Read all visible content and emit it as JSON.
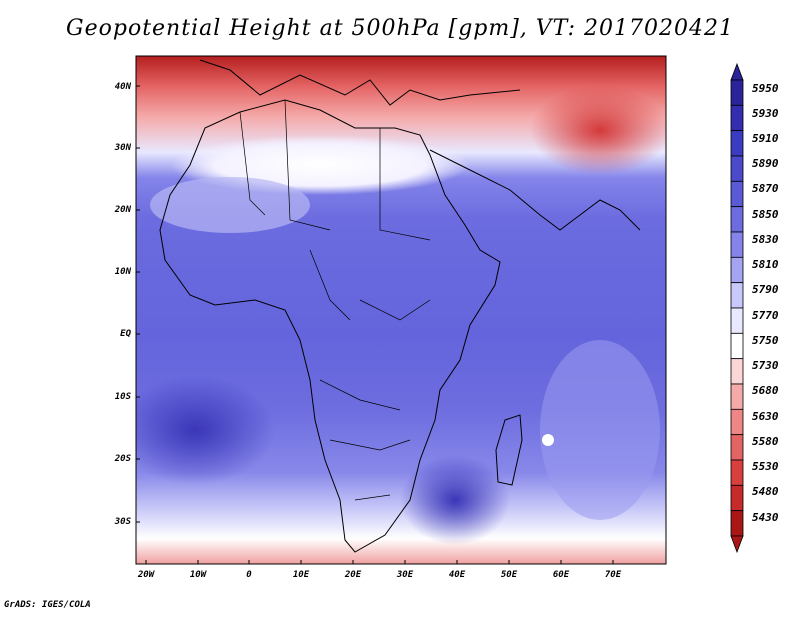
{
  "title": "Geopotential Height at 500hPa [gpm], VT: 2017020421",
  "credit": "GrADS: IGES/COLA",
  "map": {
    "lat_labels": [
      "40N",
      "30N",
      "20N",
      "10N",
      "EQ",
      "10S",
      "20S",
      "30S"
    ],
    "lon_labels": [
      "20W",
      "10W",
      "0",
      "10E",
      "20E",
      "30E",
      "40E",
      "50E",
      "60E",
      "70E"
    ]
  },
  "colorbar": {
    "levels": [
      "5950",
      "5930",
      "5910",
      "5890",
      "5870",
      "5850",
      "5830",
      "5810",
      "5790",
      "5770",
      "5750",
      "5730",
      "5680",
      "5630",
      "5580",
      "5530",
      "5480",
      "5430"
    ],
    "colors": [
      "#2b2399",
      "#332db0",
      "#3c3cc2",
      "#4a4acb",
      "#5a5ad6",
      "#6c6ce0",
      "#8484ea",
      "#a4a4f2",
      "#c8c8fa",
      "#e8e8ff",
      "#ffffff",
      "#fbd6d6",
      "#f5aaaa",
      "#ee8686",
      "#e46464",
      "#d84040",
      "#c72a2a",
      "#a81616"
    ]
  }
}
